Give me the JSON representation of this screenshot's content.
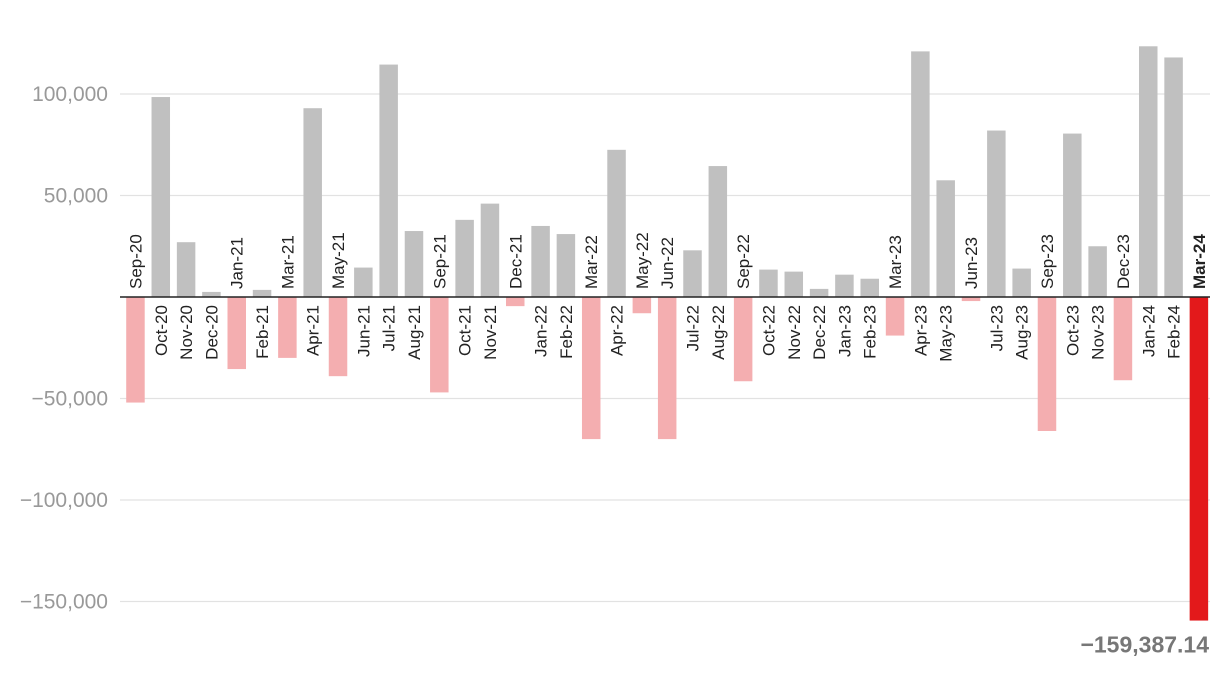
{
  "chart_data": {
    "type": "bar",
    "title": "",
    "xlabel": "",
    "ylabel": "",
    "ylim": [
      -160000,
      130000
    ],
    "yticks": [
      -150000,
      -100000,
      -50000,
      50000,
      100000
    ],
    "ytick_labels": [
      "−150,000",
      "−100,000",
      "−50,000",
      "50,000",
      "100,000"
    ],
    "grid": true,
    "legend": "none",
    "colors": {
      "positive": "#c0c0c0",
      "negative": "#f4aeb0",
      "highlight": "#e3191b",
      "grid": "#e2e2e2",
      "zero_line": "#222222"
    },
    "categories": [
      "Sep-20",
      "Oct-20",
      "Nov-20",
      "Dec-20",
      "Jan-21",
      "Feb-21",
      "Mar-21",
      "Apr-21",
      "May-21",
      "Jun-21",
      "Jul-21",
      "Aug-21",
      "Sep-21",
      "Oct-21",
      "Nov-21",
      "Dec-21",
      "Jan-22",
      "Feb-22",
      "Mar-22",
      "Apr-22",
      "May-22",
      "Jun-22",
      "Jul-22",
      "Aug-22",
      "Sep-22",
      "Oct-22",
      "Nov-22",
      "Dec-22",
      "Jan-23",
      "Feb-23",
      "Mar-23",
      "Apr-23",
      "May-23",
      "Jun-23",
      "Jul-23",
      "Aug-23",
      "Sep-23",
      "Oct-23",
      "Nov-23",
      "Dec-23",
      "Jan-24",
      "Feb-24",
      "Mar-24"
    ],
    "values": [
      -52000,
      98500,
      27000,
      2500,
      -35500,
      3500,
      -30000,
      93000,
      -39000,
      14500,
      114500,
      32500,
      -47000,
      38000,
      46000,
      -4500,
      35000,
      31000,
      -70000,
      72500,
      -8000,
      -70000,
      23000,
      64500,
      -41500,
      13500,
      12500,
      4000,
      11000,
      9000,
      -19000,
      121000,
      57500,
      -2000,
      82000,
      14000,
      -66000,
      80500,
      25000,
      -41000,
      123500,
      118000,
      -159387.14
    ],
    "highlight_index": 42,
    "callout_label": "−159,387.14"
  }
}
